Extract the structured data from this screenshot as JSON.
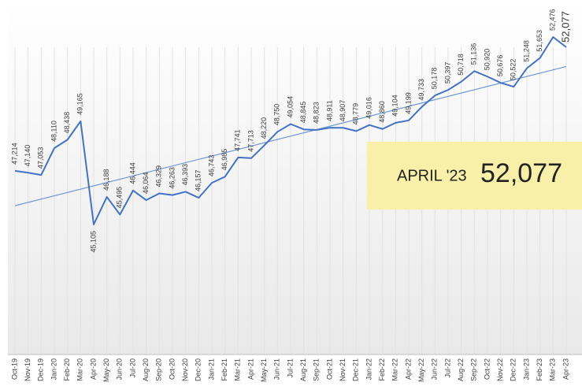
{
  "chart_data": {
    "type": "line",
    "categories": [
      "Oct-19",
      "Nov-19",
      "Dec-19",
      "Jan-20",
      "Feb-20",
      "Mar-20",
      "Apr-20",
      "May-20",
      "Jun-20",
      "Jul-20",
      "Aug-20",
      "Sep-20",
      "Oct-20",
      "Nov-20",
      "Dec-20",
      "Jan-21",
      "Feb-21",
      "Mar-21",
      "Apr-21",
      "May-21",
      "Jun-21",
      "Jul-21",
      "Aug-21",
      "Sep-21",
      "Oct-21",
      "Nov-21",
      "Dec-21",
      "Jan-22",
      "Feb-22",
      "Mar-22",
      "Apr-22",
      "May-22",
      "Jun-22",
      "Jul-22",
      "Aug-22",
      "Sep-22",
      "Oct-22",
      "Nov-22",
      "Dec-22",
      "Jan-23",
      "Feb-23",
      "Mar-23",
      "Apr-23"
    ],
    "values": [
      47214,
      47140,
      47053,
      48110,
      48438,
      49165,
      45105,
      46188,
      45495,
      46444,
      46064,
      46329,
      46263,
      46393,
      46157,
      46743,
      46985,
      47741,
      47713,
      48220,
      48750,
      49054,
      48845,
      48823,
      48911,
      48907,
      48779,
      49016,
      48860,
      49104,
      49199,
      49733,
      50178,
      50397,
      50718,
      51136,
      50920,
      50676,
      50522,
      51248,
      51653,
      52476,
      52077
    ],
    "value_labels": [
      "47,214",
      "47,140",
      "47,053",
      "48,110",
      "48,438",
      "49,165",
      "45,105",
      "46,188",
      "45,495",
      "46,444",
      "46,064",
      "46,329",
      "46,263",
      "46,393",
      "46,157",
      "46,743",
      "46,985",
      "47,741",
      "47,713",
      "48,220",
      "48,750",
      "49,054",
      "48,845",
      "48,823",
      "48,911",
      "48,907",
      "48,779",
      "49,016",
      "48,860",
      "49,104",
      "49,199",
      "49,733",
      "50,178",
      "50,397",
      "50,718",
      "51,136",
      "50,920",
      "50,676",
      "50,522",
      "51,248",
      "51,653",
      "52,476",
      "52,077"
    ],
    "color": "#4472c4",
    "trendline": "linear",
    "trend_color": "#6f97d4",
    "grid": true,
    "callout": {
      "label": "APRIL '23",
      "value": 52077,
      "value_label": "52,077",
      "color": "#f8f0a8"
    }
  }
}
